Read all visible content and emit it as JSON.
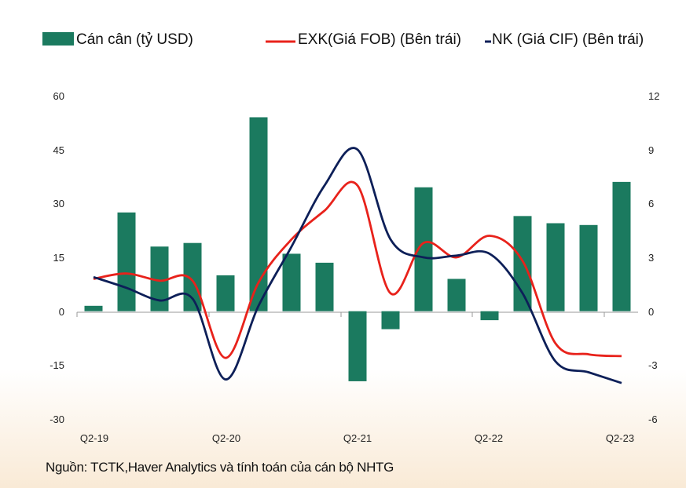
{
  "chart_data": {
    "type": "bar+line",
    "legend": {
      "balance": "Cán cân (tỷ USD)",
      "exports": "EXK(Giá FOB) (Bên trái)",
      "imports": "NK (Giá CIF) (Bên trái)"
    },
    "x_tick_labels": [
      "Q2-19",
      "Q2-20",
      "Q2-21",
      "Q2-22",
      "Q2-23"
    ],
    "left_axis": {
      "ticks": [
        "60",
        "45",
        "30",
        "15",
        "0",
        "-15",
        "-30"
      ],
      "range": [
        -30,
        60
      ]
    },
    "right_axis": {
      "ticks": [
        "12",
        "9",
        "6",
        "3",
        "0",
        "-3",
        "-6"
      ],
      "range": [
        -6,
        12
      ]
    },
    "bars": {
      "name": "Cán cân (tỷ USD)",
      "axis": "right",
      "values": [
        0.3,
        5.5,
        3.6,
        3.8,
        2.0,
        10.8,
        3.2,
        2.7,
        -3.9,
        -1.0,
        6.9,
        1.8,
        -0.5,
        5.3,
        4.9,
        4.8,
        7.2
      ]
    },
    "series": [
      {
        "name": "EXK(Giá FOB) (Bên trái)",
        "axis": "left",
        "values": [
          9,
          10.5,
          8.5,
          8.5,
          -13,
          8,
          20,
          28,
          35,
          5,
          19,
          15,
          21,
          14,
          -9,
          -12,
          -12.5
        ]
      },
      {
        "name": "NK (Giá CIF) (Bên trái)",
        "axis": "left",
        "values": [
          9.5,
          6.5,
          3,
          3.5,
          -19,
          1.5,
          18,
          35,
          45,
          20,
          15,
          15.5,
          16,
          5,
          -14,
          -17,
          -20
        ]
      }
    ],
    "colors": {
      "bars": "#1b7a5f",
      "exports": "#e8221b",
      "imports": "#0d1f58"
    }
  },
  "source": "Nguồn: TCTK,Haver Analytics và tính toán của cán bộ NHTG"
}
